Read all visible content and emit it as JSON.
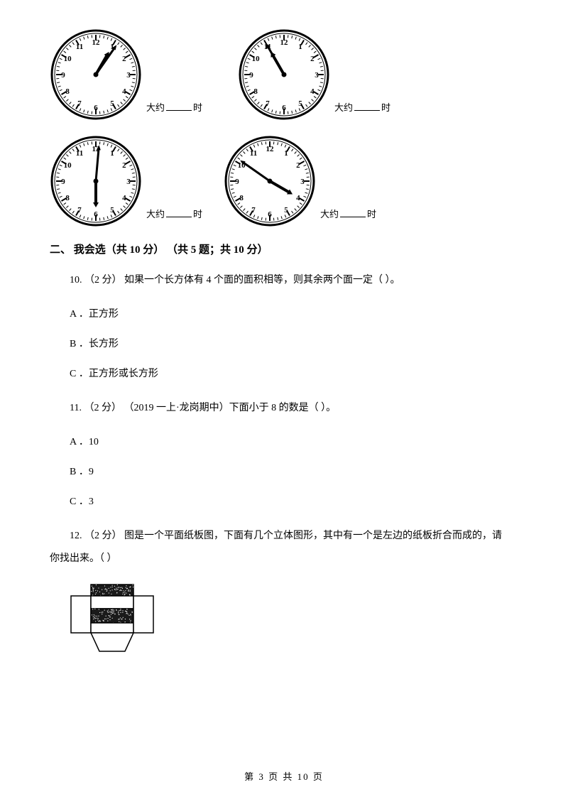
{
  "clocks": {
    "row1": [
      {
        "hour_angle": 30,
        "minute_angle": 35,
        "label_prefix": "大约",
        "label_suffix": "时"
      },
      {
        "hour_angle": -30,
        "minute_angle": -30,
        "label_prefix": "大约",
        "label_suffix": "时"
      }
    ],
    "row2": [
      {
        "hour_angle": 180,
        "minute_angle": 5,
        "label_prefix": "大约",
        "label_suffix": "时"
      },
      {
        "hour_angle": 120,
        "minute_angle": -55,
        "label_prefix": "大约",
        "label_suffix": "时"
      }
    ],
    "face": {
      "numerals": [
        "12",
        "1",
        "2",
        "3",
        "4",
        "5",
        "6",
        "7",
        "8",
        "9",
        "10",
        "11"
      ],
      "radius": 62,
      "numeral_radius": 46,
      "tick_outer": 56,
      "tick_inner_major": 48,
      "tick_inner_minor": 52,
      "hour_hand_len": 30,
      "minute_hand_len": 44,
      "stroke": "#000000",
      "fill": "#ffffff",
      "font_size": 11
    }
  },
  "section2": {
    "title": "二、 我会选（共 10 分） （共 5 题；共 10 分）"
  },
  "q10": {
    "text": "10. （2 分）  如果一个长方体有 4 个面的面积相等，则其余两个面一定（      ）。",
    "options": {
      "A": "A ．正方形",
      "B": "B ．长方形",
      "C": "C ．正方形或长方形"
    }
  },
  "q11": {
    "text": "11. （2 分） （2019 一上·龙岗期中）下面小于 8 的数是（      ）。",
    "options": {
      "A": "A ．10",
      "B": "B ．9",
      "C": "C ．3"
    }
  },
  "q12": {
    "text_part1": "12. （2 分）  图是一个平面纸板图，下面有几个立体图形，其中有一个是左边的纸板折合而成的，请",
    "text_part2": "你找出来。（      ）"
  },
  "box_figure": {
    "width": 120,
    "height": 100,
    "colors": {
      "line": "#000000",
      "dark": "#1a1a1a",
      "light": "#ffffff"
    }
  },
  "footer": {
    "text": "第 3 页 共 10 页"
  }
}
